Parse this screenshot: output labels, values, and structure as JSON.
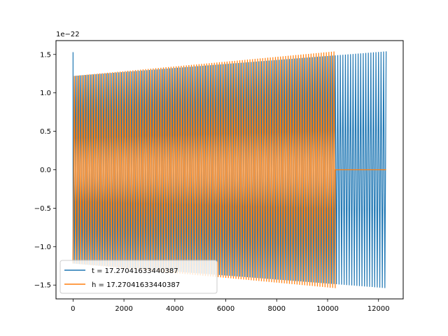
{
  "chart_data": {
    "type": "line",
    "title": "",
    "xlabel": "",
    "ylabel": "",
    "y_scale_label": "1e−22",
    "y_scale": 1e-22,
    "xlim": [
      -670,
      12970
    ],
    "ylim": [
      -1.68,
      1.68
    ],
    "x_ticks": [
      0,
      2000,
      4000,
      6000,
      8000,
      10000,
      12000
    ],
    "x_tick_labels": [
      "0",
      "2000",
      "4000",
      "6000",
      "8000",
      "10000",
      "12000"
    ],
    "y_ticks": [
      -1.5,
      -1.0,
      -0.5,
      0.0,
      0.5,
      1.0,
      1.5
    ],
    "y_tick_labels": [
      "−1.5",
      "−1.0",
      "−0.5",
      "0.0",
      "0.5",
      "1.0",
      "1.5"
    ],
    "grid": false,
    "legend_position": "lower-left",
    "series": [
      {
        "name": "t = 17.27041633440387",
        "color": "#1f77b4",
        "x_range": [
          0,
          12300
        ],
        "amplitude_start": 1.22,
        "amplitude_end": 1.54,
        "initial_peak": 1.53,
        "oscillation": "rapid, approx. 200-sample period"
      },
      {
        "name": "h = 17.27041633440387",
        "color": "#ff7f0e",
        "x_range": [
          0,
          10300
        ],
        "amplitude_start": 1.22,
        "amplitude_end": 1.54,
        "zero_after_x": 10300,
        "oscillation": "rapid, approx. 200-sample period"
      }
    ]
  }
}
